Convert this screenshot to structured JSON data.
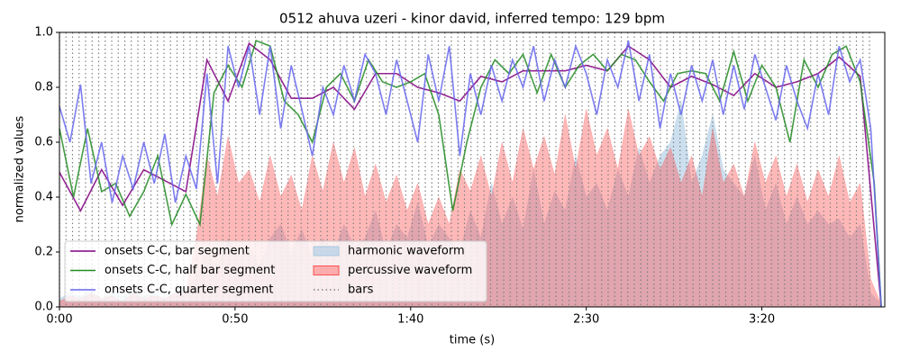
{
  "chart_data": {
    "type": "line",
    "title": "0512 ahuva uzeri - kinor david, inferred tempo: 129 bpm",
    "xlabel": "time (s)",
    "ylabel": "normalized values",
    "xlim": [
      0,
      235
    ],
    "ylim": [
      0,
      1
    ],
    "xticks": [
      {
        "value": 0,
        "label": "0:00"
      },
      {
        "value": 50,
        "label": "0:50"
      },
      {
        "value": 100,
        "label": "1:40"
      },
      {
        "value": 150,
        "label": "2:30"
      },
      {
        "value": 200,
        "label": "3:20"
      }
    ],
    "yticks": [
      {
        "value": 0,
        "label": "0.0"
      },
      0.2,
      0.4,
      0.6,
      0.8,
      {
        "value": 1,
        "label": "1.0"
      }
    ],
    "legend": "lower left",
    "areas": [
      {
        "name": "harmonic waveform",
        "color": "#a9c9e2",
        "opacity": 0.6,
        "x": [
          0,
          3,
          6,
          9,
          12,
          15,
          18,
          21,
          24,
          27,
          30,
          33,
          36,
          39,
          42,
          45,
          48,
          51,
          54,
          57,
          60,
          63,
          66,
          69,
          72,
          75,
          78,
          81,
          84,
          87,
          90,
          93,
          96,
          99,
          102,
          105,
          108,
          111,
          114,
          117,
          120,
          123,
          126,
          129,
          132,
          135,
          138,
          141,
          144,
          147,
          150,
          153,
          156,
          159,
          162,
          165,
          168,
          171,
          174,
          177,
          180,
          183,
          186,
          189,
          192,
          195,
          198,
          201,
          204,
          207,
          210,
          213,
          216,
          219,
          222,
          225,
          228,
          231,
          234
        ],
        "values": [
          0.03,
          0.05,
          0.04,
          0.06,
          0.03,
          0.05,
          0.04,
          0.06,
          0.04,
          0.05,
          0.03,
          0.06,
          0.05,
          0.12,
          0.2,
          0.15,
          0.25,
          0.18,
          0.22,
          0.15,
          0.25,
          0.3,
          0.2,
          0.28,
          0.18,
          0.25,
          0.2,
          0.3,
          0.22,
          0.25,
          0.35,
          0.2,
          0.3,
          0.25,
          0.38,
          0.22,
          0.3,
          0.25,
          0.2,
          0.35,
          0.25,
          0.45,
          0.3,
          0.4,
          0.28,
          0.5,
          0.3,
          0.42,
          0.35,
          0.55,
          0.4,
          0.45,
          0.35,
          0.5,
          0.4,
          0.58,
          0.45,
          0.55,
          0.6,
          0.75,
          0.45,
          0.55,
          0.7,
          0.5,
          0.45,
          0.4,
          0.55,
          0.35,
          0.45,
          0.3,
          0.4,
          0.3,
          0.35,
          0.3,
          0.32,
          0.25,
          0.3,
          0.05,
          0.01
        ]
      },
      {
        "name": "percussive waveform",
        "color": "#ff4d4d",
        "opacity": 0.4,
        "x": [
          0,
          3,
          6,
          9,
          12,
          15,
          18,
          21,
          24,
          27,
          30,
          33,
          36,
          39,
          42,
          45,
          48,
          51,
          54,
          57,
          60,
          63,
          66,
          69,
          72,
          75,
          78,
          81,
          84,
          87,
          90,
          93,
          96,
          99,
          102,
          105,
          108,
          111,
          114,
          117,
          120,
          123,
          126,
          129,
          132,
          135,
          138,
          141,
          144,
          147,
          150,
          153,
          156,
          159,
          162,
          165,
          168,
          171,
          174,
          177,
          180,
          183,
          186,
          189,
          192,
          195,
          198,
          201,
          204,
          207,
          210,
          213,
          216,
          219,
          222,
          225,
          228,
          231,
          234
        ],
        "values": [
          0.02,
          0.04,
          0.03,
          0.05,
          0.03,
          0.04,
          0.02,
          0.05,
          0.03,
          0.04,
          0.03,
          0.05,
          0.06,
          0.25,
          0.55,
          0.4,
          0.62,
          0.45,
          0.5,
          0.38,
          0.55,
          0.4,
          0.48,
          0.35,
          0.55,
          0.42,
          0.6,
          0.45,
          0.58,
          0.4,
          0.52,
          0.38,
          0.48,
          0.35,
          0.45,
          0.3,
          0.4,
          0.3,
          0.5,
          0.42,
          0.55,
          0.4,
          0.6,
          0.45,
          0.65,
          0.5,
          0.62,
          0.48,
          0.7,
          0.5,
          0.72,
          0.55,
          0.65,
          0.5,
          0.72,
          0.55,
          0.62,
          0.5,
          0.58,
          0.45,
          0.55,
          0.4,
          0.65,
          0.45,
          0.52,
          0.4,
          0.6,
          0.45,
          0.55,
          0.4,
          0.52,
          0.38,
          0.5,
          0.4,
          0.55,
          0.38,
          0.45,
          0.1,
          0.01
        ]
      }
    ],
    "bars": {
      "name": "bars",
      "color": "#808080",
      "x": [
        0,
        1.86,
        3.72,
        5.58,
        7.44,
        9.3,
        11.16,
        13.02,
        14.88,
        16.74,
        18.6,
        20.46,
        22.32,
        24.18,
        26.04,
        27.9,
        29.76,
        31.62,
        33.48,
        35.34,
        37.2,
        39.06,
        40.92,
        42.78,
        44.64,
        46.5,
        48.36,
        50.22,
        52.08,
        53.94,
        55.8,
        57.66,
        59.52,
        61.38,
        63.24,
        65.1,
        66.96,
        68.82,
        70.68,
        72.54,
        74.4,
        76.26,
        78.12,
        79.98,
        81.84,
        83.7,
        85.56,
        87.42,
        89.28,
        91.14,
        93,
        94.86,
        96.72,
        98.58,
        100.44,
        102.3,
        104.16,
        106.02,
        107.88,
        109.74,
        111.6,
        113.46,
        115.32,
        117.18,
        119.04,
        120.9,
        122.76,
        124.62,
        126.48,
        128.34,
        130.2,
        132.06,
        133.92,
        135.78,
        137.64,
        139.5,
        141.36,
        143.22,
        145.08,
        146.94,
        148.8,
        150.66,
        152.52,
        154.38,
        156.24,
        158.1,
        159.96,
        161.82,
        163.68,
        165.54,
        167.4,
        169.26,
        171.12,
        172.98,
        174.84,
        176.7,
        178.56,
        180.42,
        182.28,
        184.14,
        186,
        187.86,
        189.72,
        191.58,
        193.44,
        195.3,
        197.16,
        199.02,
        200.88,
        202.74,
        204.6,
        206.46,
        208.32,
        210.18,
        212.04,
        213.9,
        215.76,
        217.62,
        219.48,
        221.34,
        223.2,
        225.06,
        226.92,
        228.78,
        230.64
      ]
    },
    "series": [
      {
        "name": "onsets C-C, bar segment",
        "color": "#800080",
        "x": [
          0,
          6,
          12,
          18,
          24,
          30,
          36,
          42,
          48,
          54,
          60,
          66,
          72,
          78,
          84,
          90,
          96,
          102,
          108,
          114,
          120,
          126,
          132,
          138,
          144,
          150,
          156,
          162,
          168,
          174,
          180,
          186,
          192,
          198,
          204,
          210,
          216,
          222,
          228,
          234
        ],
        "values": [
          0.49,
          0.35,
          0.5,
          0.37,
          0.5,
          0.46,
          0.42,
          0.9,
          0.75,
          0.96,
          0.9,
          0.76,
          0.76,
          0.8,
          0.72,
          0.85,
          0.85,
          0.8,
          0.78,
          0.75,
          0.84,
          0.82,
          0.86,
          0.86,
          0.86,
          0.88,
          0.86,
          0.95,
          0.9,
          0.8,
          0.84,
          0.81,
          0.77,
          0.85,
          0.8,
          0.82,
          0.85,
          0.91,
          0.84,
          0.0
        ]
      },
      {
        "name": "onsets C-C, half bar segment",
        "color": "#228b22",
        "x": [
          0,
          4,
          8,
          12,
          16,
          20,
          24,
          28,
          32,
          36,
          40,
          44,
          48,
          52,
          56,
          60,
          64,
          68,
          72,
          76,
          80,
          84,
          88,
          92,
          96,
          100,
          104,
          108,
          112,
          116,
          120,
          124,
          128,
          132,
          136,
          140,
          144,
          148,
          152,
          156,
          160,
          164,
          168,
          172,
          176,
          180,
          184,
          188,
          192,
          196,
          200,
          204,
          208,
          212,
          216,
          220,
          224,
          228,
          232,
          234
        ],
        "values": [
          0.65,
          0.4,
          0.65,
          0.42,
          0.45,
          0.33,
          0.42,
          0.55,
          0.3,
          0.41,
          0.3,
          0.78,
          0.88,
          0.8,
          0.97,
          0.95,
          0.75,
          0.7,
          0.6,
          0.8,
          0.85,
          0.75,
          0.9,
          0.82,
          0.8,
          0.82,
          0.85,
          0.7,
          0.35,
          0.6,
          0.8,
          0.9,
          0.85,
          0.92,
          0.78,
          0.92,
          0.8,
          0.88,
          0.92,
          0.86,
          0.92,
          0.9,
          0.82,
          0.75,
          0.85,
          0.86,
          0.85,
          0.75,
          0.93,
          0.75,
          0.88,
          0.8,
          0.6,
          0.9,
          0.8,
          0.92,
          0.95,
          0.82,
          0.45,
          0.0
        ]
      },
      {
        "name": "onsets C-C, quarter segment",
        "color": "#6666ee",
        "x": [
          0,
          3,
          6,
          9,
          12,
          15,
          18,
          21,
          24,
          27,
          30,
          33,
          36,
          39,
          42,
          45,
          48,
          51,
          54,
          57,
          60,
          63,
          66,
          69,
          72,
          75,
          78,
          81,
          84,
          87,
          90,
          93,
          96,
          99,
          102,
          105,
          108,
          111,
          114,
          117,
          120,
          123,
          126,
          129,
          132,
          135,
          138,
          141,
          144,
          147,
          150,
          153,
          156,
          159,
          162,
          165,
          168,
          171,
          174,
          177,
          180,
          183,
          186,
          189,
          192,
          195,
          198,
          201,
          204,
          207,
          210,
          213,
          216,
          219,
          222,
          225,
          228,
          231,
          234
        ],
        "values": [
          0.73,
          0.6,
          0.81,
          0.45,
          0.6,
          0.38,
          0.55,
          0.43,
          0.6,
          0.45,
          0.63,
          0.38,
          0.55,
          0.43,
          0.85,
          0.45,
          0.95,
          0.8,
          0.95,
          0.7,
          0.95,
          0.65,
          0.88,
          0.72,
          0.55,
          0.8,
          0.7,
          0.88,
          0.75,
          0.92,
          0.85,
          0.7,
          0.9,
          0.75,
          0.6,
          0.92,
          0.75,
          0.95,
          0.55,
          0.85,
          0.7,
          0.88,
          0.75,
          0.9,
          0.8,
          0.95,
          0.75,
          0.9,
          0.8,
          0.95,
          0.85,
          0.7,
          0.9,
          0.8,
          0.97,
          0.75,
          0.92,
          0.65,
          0.85,
          0.7,
          0.88,
          0.75,
          0.9,
          0.7,
          0.88,
          0.72,
          0.92,
          0.8,
          0.68,
          0.88,
          0.75,
          0.65,
          0.85,
          0.7,
          0.95,
          0.82,
          0.9,
          0.65,
          0.0
        ]
      }
    ]
  }
}
